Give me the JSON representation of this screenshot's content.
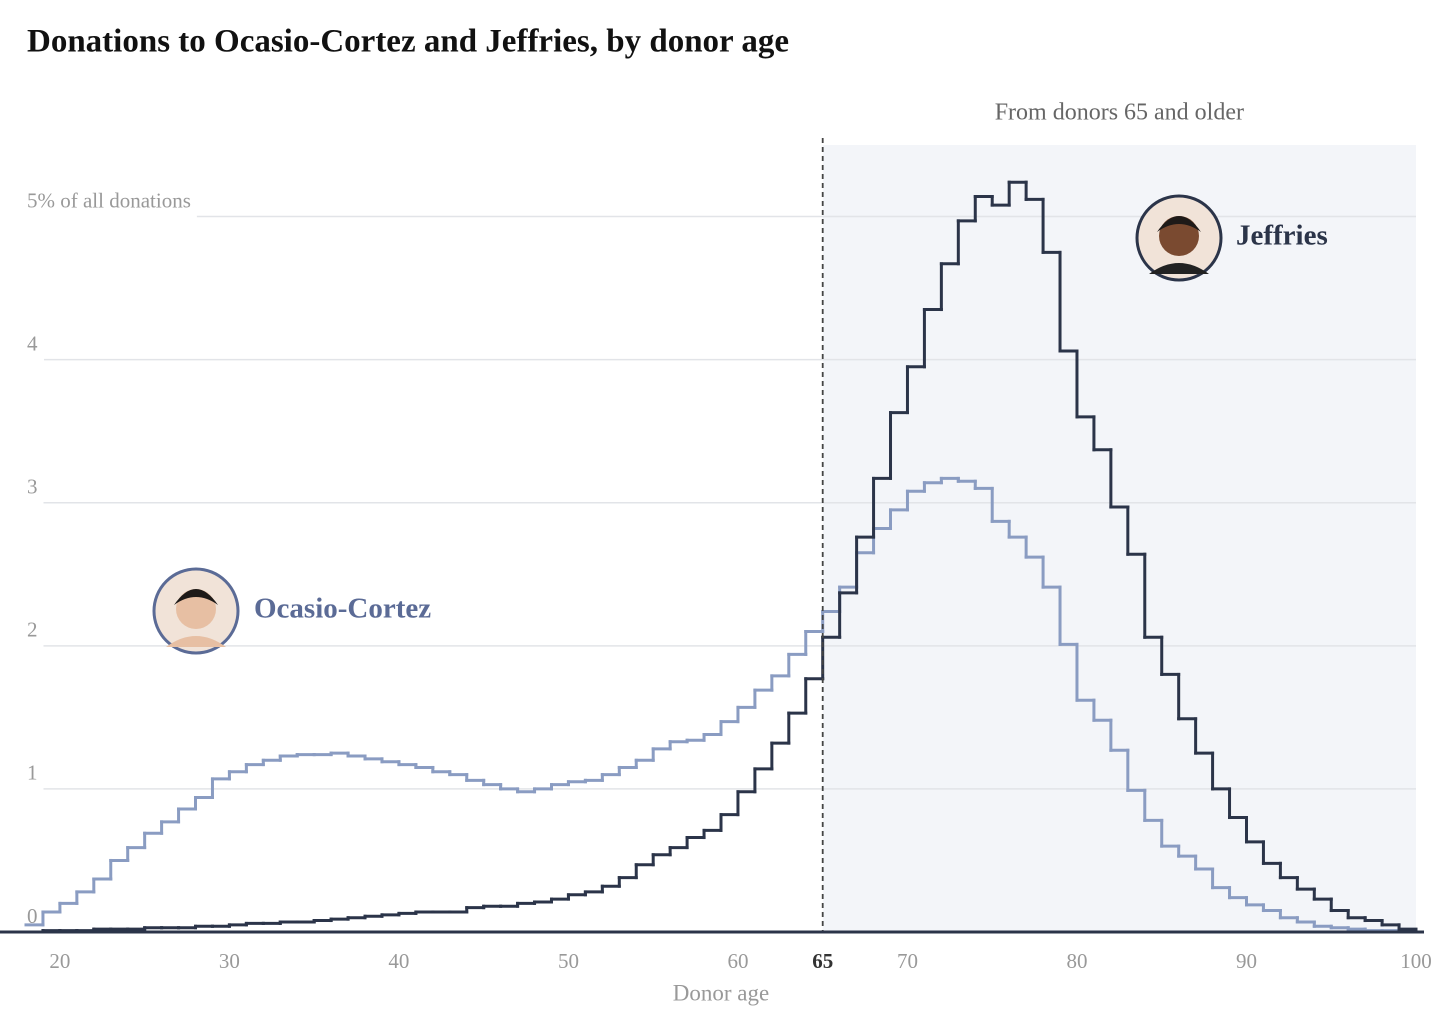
{
  "chart_data": {
    "type": "histogram",
    "title": "Donations to Ocasio-Cortez and Jeffries, by donor age",
    "x_label": "Donor age",
    "annotation": "From donors 65 and older",
    "highlight_x": 65,
    "bins": [
      18,
      19,
      20,
      21,
      22,
      23,
      24,
      25,
      26,
      27,
      28,
      29,
      30,
      31,
      32,
      33,
      34,
      35,
      36,
      37,
      38,
      39,
      40,
      41,
      42,
      43,
      44,
      45,
      46,
      47,
      48,
      49,
      50,
      51,
      52,
      53,
      54,
      55,
      56,
      57,
      58,
      59,
      60,
      61,
      62,
      63,
      64,
      65,
      66,
      67,
      68,
      69,
      70,
      71,
      72,
      73,
      74,
      75,
      76,
      77,
      78,
      79,
      80,
      81,
      82,
      83,
      84,
      85,
      86,
      87,
      88,
      89,
      90,
      91,
      92,
      93,
      94,
      95,
      96,
      97,
      98,
      99,
      100
    ],
    "series": [
      {
        "name": "Ocasio-Cortez",
        "color": "#8a9cc2",
        "label_color": "#5b6b96",
        "values": [
          0.05,
          0.14,
          0.2,
          0.28,
          0.37,
          0.5,
          0.59,
          0.69,
          0.77,
          0.86,
          0.94,
          1.07,
          1.12,
          1.17,
          1.2,
          1.23,
          1.24,
          1.24,
          1.25,
          1.23,
          1.21,
          1.19,
          1.17,
          1.15,
          1.12,
          1.1,
          1.06,
          1.03,
          1.0,
          0.98,
          1.0,
          1.03,
          1.05,
          1.06,
          1.1,
          1.15,
          1.2,
          1.28,
          1.33,
          1.34,
          1.38,
          1.47,
          1.57,
          1.69,
          1.79,
          1.94,
          2.1,
          2.24,
          2.41,
          2.65,
          2.82,
          2.95,
          3.08,
          3.14,
          3.17,
          3.15,
          3.1,
          2.87,
          2.76,
          2.62,
          2.41,
          2.01,
          1.62,
          1.48,
          1.27,
          0.99,
          0.78,
          0.6,
          0.53,
          0.44,
          0.31,
          0.24,
          0.19,
          0.15,
          0.1,
          0.07,
          0.04,
          0.03,
          0.02,
          0.01,
          0.01,
          0.0
        ]
      },
      {
        "name": "Jeffries",
        "color": "#2b3449",
        "label_color": "#2b3449",
        "values": [
          0.0,
          0.01,
          0.01,
          0.01,
          0.02,
          0.02,
          0.02,
          0.03,
          0.03,
          0.03,
          0.04,
          0.04,
          0.05,
          0.06,
          0.06,
          0.07,
          0.07,
          0.08,
          0.09,
          0.1,
          0.11,
          0.12,
          0.13,
          0.14,
          0.14,
          0.14,
          0.17,
          0.18,
          0.18,
          0.2,
          0.21,
          0.23,
          0.26,
          0.28,
          0.32,
          0.38,
          0.47,
          0.54,
          0.59,
          0.66,
          0.71,
          0.82,
          0.98,
          1.14,
          1.32,
          1.53,
          1.77,
          2.06,
          2.37,
          2.76,
          3.17,
          3.63,
          3.95,
          4.35,
          4.67,
          4.97,
          5.14,
          5.08,
          5.24,
          5.12,
          4.75,
          4.06,
          3.6,
          3.37,
          2.97,
          2.64,
          2.06,
          1.8,
          1.49,
          1.25,
          1.0,
          0.8,
          0.63,
          0.48,
          0.38,
          0.3,
          0.23,
          0.15,
          0.1,
          0.08,
          0.05,
          0.02
        ]
      }
    ],
    "xlim": [
      18,
      100
    ],
    "xticks": [
      20,
      30,
      40,
      50,
      60,
      65,
      70,
      80,
      90,
      100
    ],
    "ylim": [
      0,
      5.5
    ],
    "yticks": [
      0,
      1,
      2,
      3,
      4,
      {
        "value": 5,
        "label": "5% of all donations"
      }
    ],
    "grid": true
  }
}
